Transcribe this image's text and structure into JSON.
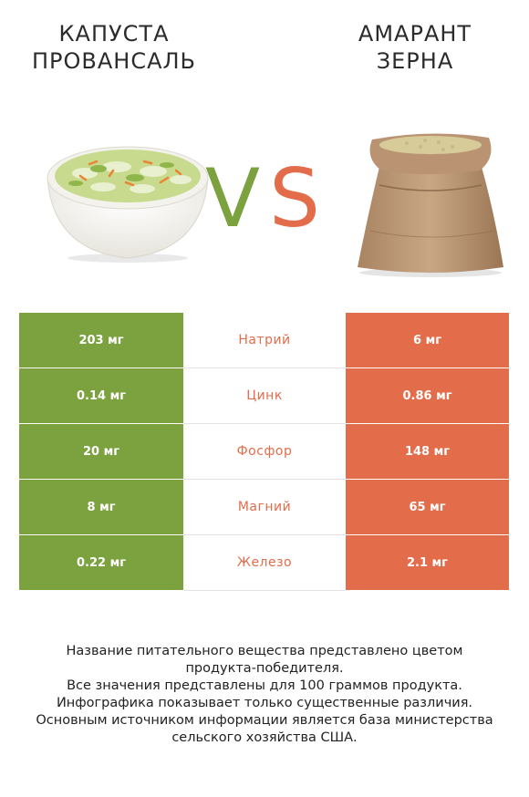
{
  "left_product": {
    "title_line1": "КАПУСТА",
    "title_line2": "ПРОВАНСАЛЬ",
    "color": "#7ba23f"
  },
  "right_product": {
    "title_line1": "АМАРАНТ",
    "title_line2": "ЗЕРНА",
    "color": "#e36c4a"
  },
  "vs": {
    "v": "V",
    "s": "S"
  },
  "rows": [
    {
      "left": "203 мг",
      "nutrient": "Натрий",
      "right": "6 мг",
      "winner": "right"
    },
    {
      "left": "0.14 мг",
      "nutrient": "Цинк",
      "right": "0.86 мг",
      "winner": "right"
    },
    {
      "left": "20 мг",
      "nutrient": "Фосфор",
      "right": "148 мг",
      "winner": "right"
    },
    {
      "left": "8 мг",
      "nutrient": "Магний",
      "right": "65 мг",
      "winner": "right"
    },
    {
      "left": "0.22 мг",
      "nutrient": "Железо",
      "right": "2.1 мг",
      "winner": "right"
    }
  ],
  "footer": {
    "line1": "Название питательного вещества представлено цветом",
    "line2": "продукта-победителя.",
    "line3": "Все значения представлены для 100 граммов продукта.",
    "line4": "Инфографика показывает только существенные различия.",
    "line5": "Основным источником информации является база министерства",
    "line6": "сельского хозяйства США."
  }
}
